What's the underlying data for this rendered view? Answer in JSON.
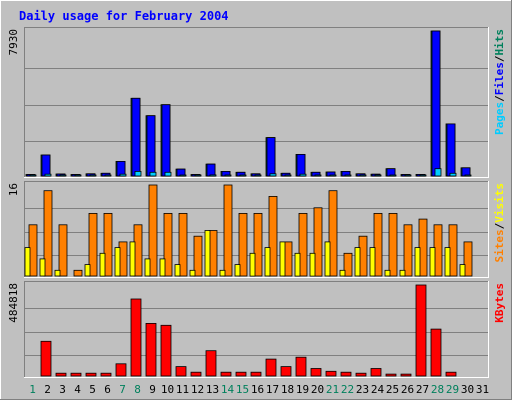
{
  "chart_data": {
    "type": "bar",
    "title": "Daily usage for February 2004",
    "categories": [
      "1",
      "2",
      "3",
      "4",
      "5",
      "6",
      "7",
      "8",
      "9",
      "10",
      "11",
      "12",
      "13",
      "14",
      "15",
      "16",
      "17",
      "18",
      "19",
      "20",
      "21",
      "22",
      "23",
      "24",
      "25",
      "26",
      "27",
      "28",
      "29",
      "30",
      "31"
    ],
    "weekend_days": [
      "1",
      "7",
      "8",
      "14",
      "15",
      "21",
      "22",
      "28",
      "29"
    ],
    "panels": [
      {
        "id": "hits",
        "ymax_label": "7930",
        "ymax": 7930,
        "legend": [
          {
            "text": "Pages",
            "color": "#00ccff"
          },
          {
            "text": "Files",
            "color": "#0000ff"
          },
          {
            "text": "Hits",
            "color": "#00805c"
          }
        ],
        "series": [
          {
            "key": "hits",
            "color": "#00805c",
            "values": [
              80,
              1150,
              110,
              80,
              120,
              150,
              800,
              4250,
              3300,
              3900,
              380,
              80,
              650,
              250,
              200,
              120,
              2100,
              150,
              1180,
              200,
              220,
              250,
              120,
              100,
              400,
              80,
              90,
              7930,
              2850,
              450,
              0
            ]
          },
          {
            "key": "files",
            "color": "#0000ff",
            "values": [
              80,
              1150,
              110,
              80,
              120,
              150,
              800,
              4250,
              3300,
              3900,
              380,
              80,
              650,
              250,
              200,
              120,
              2100,
              150,
              1180,
              200,
              220,
              250,
              120,
              100,
              400,
              80,
              90,
              7930,
              2850,
              450,
              0
            ]
          },
          {
            "key": "pages",
            "color": "#00ccff",
            "values": [
              20,
              100,
              30,
              20,
              30,
              40,
              100,
              250,
              200,
              200,
              50,
              20,
              60,
              40,
              30,
              20,
              120,
              30,
              100,
              30,
              30,
              40,
              20,
              20,
              50,
              20,
              20,
              400,
              150,
              40,
              0
            ]
          }
        ]
      },
      {
        "id": "visits",
        "ymax_label": "16",
        "ymax": 16,
        "legend": [
          {
            "text": "Sites",
            "color": "#ff8000"
          },
          {
            "text": "Visits",
            "color": "#ffff00"
          }
        ],
        "series": [
          {
            "key": "sites",
            "color": "#ff8000",
            "values": [
              9,
              15,
              9,
              1,
              11,
              11,
              6,
              9,
              16,
              11,
              11,
              7,
              8,
              16,
              11,
              11,
              14,
              6,
              11,
              12,
              15,
              4,
              7,
              11,
              11,
              9,
              10,
              9,
              9,
              6,
              0
            ]
          },
          {
            "key": "visits",
            "color": "#ffff00",
            "values": [
              5,
              3,
              1,
              0,
              2,
              4,
              5,
              6,
              3,
              3,
              2,
              1,
              8,
              1,
              2,
              4,
              5,
              6,
              4,
              4,
              6,
              1,
              5,
              5,
              1,
              1,
              5,
              5,
              5,
              2,
              0
            ]
          }
        ]
      },
      {
        "id": "kbytes",
        "ymax_label": "484818",
        "ymax": 484818,
        "legend": [
          {
            "text": "KBytes",
            "color": "#ff0000"
          }
        ],
        "series": [
          {
            "key": "kbytes",
            "color": "#ff0000",
            "values": [
              0,
              185000,
              15000,
              15000,
              15000,
              15000,
              65000,
              410000,
              280000,
              270000,
              50000,
              20000,
              135000,
              20000,
              20000,
              20000,
              90000,
              50000,
              100000,
              40000,
              25000,
              20000,
              15000,
              40000,
              10000,
              10000,
              484818,
              250000,
              20000,
              0,
              0
            ]
          }
        ]
      }
    ]
  }
}
